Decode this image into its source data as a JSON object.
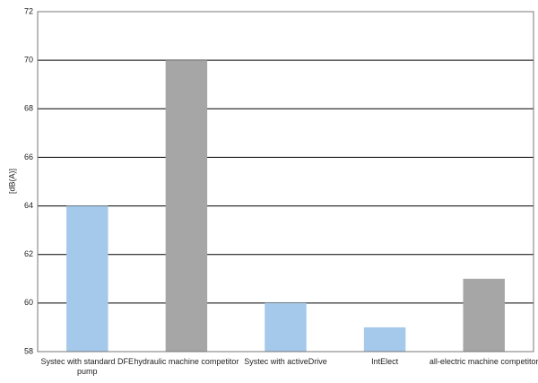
{
  "chart_data": {
    "type": "bar",
    "y_label": "[dB(A)]",
    "categories": [
      "Systec with standard DFE pump",
      "hydraulic machine competitor",
      "Systec with activeDrive",
      "IntElect",
      "all-electric machine competitor"
    ],
    "values": [
      64,
      70,
      60,
      59,
      61
    ],
    "colors": [
      "#a4c9ea",
      "#a6a6a6",
      "#a4c9ea",
      "#a4c9ea",
      "#a6a6a6"
    ],
    "ylim": [
      58,
      72
    ],
    "yticks": [
      58,
      60,
      62,
      64,
      66,
      68,
      70,
      72
    ],
    "grid": true
  }
}
